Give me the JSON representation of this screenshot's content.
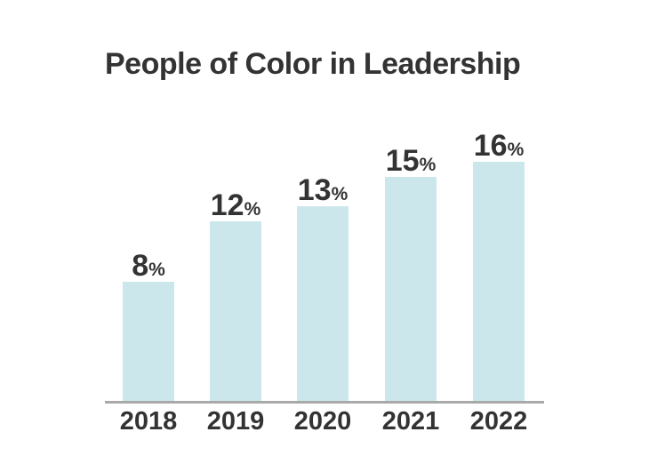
{
  "chart_data": {
    "type": "bar",
    "title": "People of Color in Leadership",
    "categories": [
      "2018",
      "2019",
      "2020",
      "2021",
      "2022"
    ],
    "values": [
      8,
      12,
      13,
      15,
      16
    ],
    "value_suffix": "%",
    "xlabel": "",
    "ylabel": "",
    "ylim": [
      0,
      17
    ],
    "grid": false,
    "legend": false,
    "value_labels_position": "above-bars",
    "colors": {
      "bar": "#cbe7ec",
      "axis_line": "#a9a9a9",
      "text": "#333333",
      "background": "#ffffff"
    }
  }
}
